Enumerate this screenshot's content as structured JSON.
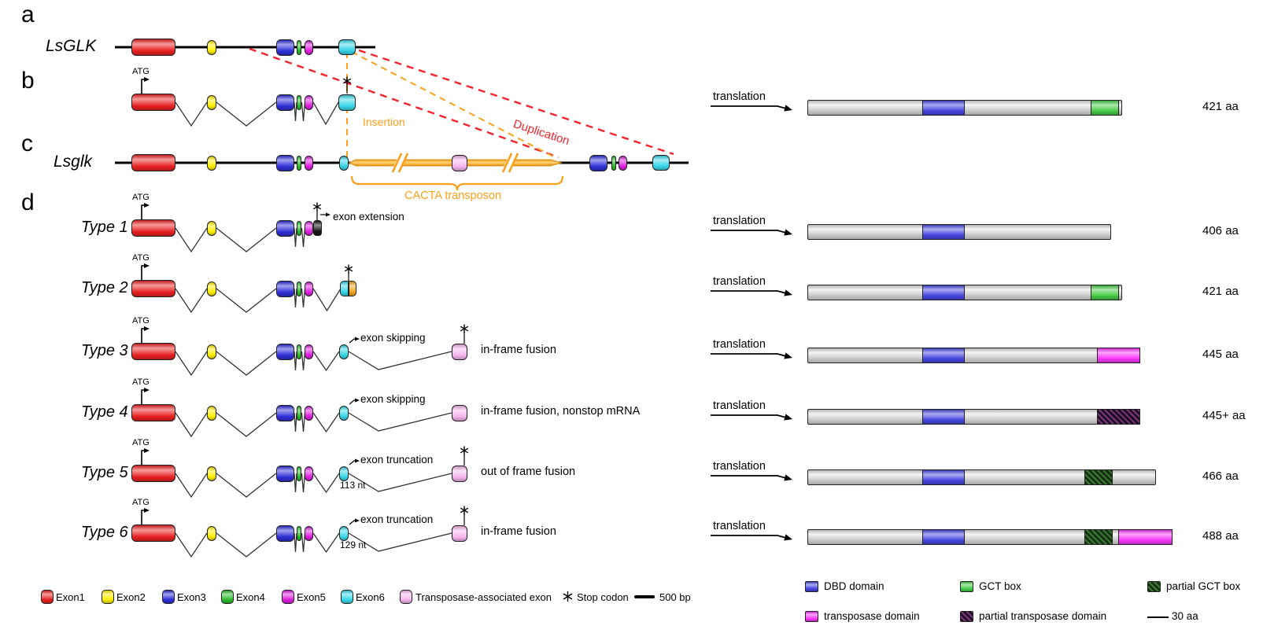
{
  "figure": {
    "panel_letters": [
      "a",
      "b",
      "c",
      "d"
    ],
    "gene_wildtype_label": "LsGLK",
    "gene_mutant_label": "Lsglk",
    "atg_label": "ATG",
    "insertion_label": "Insertion",
    "duplication_label": "Duplication",
    "cacta_label": "CACTA transposon",
    "translation_label": "translation",
    "wildtype_mrna_aa": "421 aa"
  },
  "types": [
    {
      "name": "Type 1",
      "annotation": "exon extension",
      "fusion": "",
      "nt": "",
      "aa": "406 aa"
    },
    {
      "name": "Type 2",
      "annotation": "",
      "fusion": "",
      "nt": "",
      "aa": "421 aa"
    },
    {
      "name": "Type 3",
      "annotation": "exon skipping",
      "fusion": "in-frame fusion",
      "nt": "",
      "aa": "445 aa"
    },
    {
      "name": "Type 4",
      "annotation": "exon skipping",
      "fusion": "in-frame fusion, nonstop mRNA",
      "nt": "",
      "aa": "445+ aa"
    },
    {
      "name": "Type 5",
      "annotation": "exon truncation",
      "fusion": "out of frame fusion",
      "nt": "113 nt",
      "aa": "466 aa"
    },
    {
      "name": "Type 6",
      "annotation": "exon truncation",
      "fusion": "in-frame fusion",
      "nt": "129 nt",
      "aa": "488 aa"
    }
  ],
  "legend_exons": [
    {
      "label": "Exon1",
      "color": "#e82121"
    },
    {
      "label": "Exon2",
      "color": "#ffee00"
    },
    {
      "label": "Exon3",
      "color": "#2f2fd8"
    },
    {
      "label": "Exon4",
      "color": "#2dbb2d"
    },
    {
      "label": "Exon5",
      "color": "#e020e0"
    },
    {
      "label": "Exon6",
      "color": "#38d6e8"
    },
    {
      "label": "Transposase-associated exon",
      "color": "#f7b5ee"
    },
    {
      "label": "Stop codon"
    },
    {
      "label": "500 bp"
    }
  ],
  "legend_domains": [
    {
      "label": "DBD domain",
      "color": "#4646e0"
    },
    {
      "label": "GCT box",
      "color": "#46cc46"
    },
    {
      "label": "partial GCT box",
      "color": "#153312"
    },
    {
      "label": "transposase domain",
      "color": "#f837f8"
    },
    {
      "label": "partial transposase domain",
      "color": "#200c26"
    },
    {
      "label": "30 aa"
    }
  ],
  "colors": {
    "exon1": "#e82121",
    "exon2": "#ffee00",
    "exon3": "#2f2fd8",
    "exon4": "#2dbb2d",
    "exon5": "#e020e0",
    "exon6": "#38d6e8",
    "transposase_exon": "#f7b5ee",
    "extension_exon": "#161616",
    "split_exon_orange": "#f5a623",
    "transposon": "#f9a11b",
    "insertion_line": "#f9a11b",
    "duplication_line": "#f3242c",
    "protein_body": "#d8d8d8",
    "dbd": "#4646e0",
    "gct": "#46cc46",
    "transposase": "#f837f8",
    "partial_gct_base": "#153312",
    "partial_gct_hatch": "#3f7a38",
    "partial_transposase_base": "#200c26",
    "partial_transposase_hatch": "#7a3a78",
    "intron_line": "#333333",
    "gene_line": "#000000"
  }
}
